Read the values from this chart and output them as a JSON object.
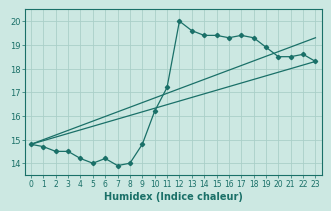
{
  "title": "",
  "xlabel": "Humidex (Indice chaleur)",
  "ylabel": "",
  "bg_color": "#cce8e2",
  "grid_color": "#aacfc8",
  "line_color": "#1a7068",
  "ylim": [
    13.5,
    20.5
  ],
  "xlim": [
    -0.5,
    23.5
  ],
  "yticks": [
    14,
    15,
    16,
    17,
    18,
    19,
    20
  ],
  "xticks": [
    0,
    1,
    2,
    3,
    4,
    5,
    6,
    7,
    8,
    9,
    10,
    11,
    12,
    13,
    14,
    15,
    16,
    17,
    18,
    19,
    20,
    21,
    22,
    23
  ],
  "line1_x": [
    0,
    1,
    2,
    3,
    4,
    5,
    6,
    7,
    8,
    9,
    10,
    11,
    12,
    13,
    14,
    15,
    16,
    17,
    18,
    19,
    20,
    21,
    22,
    23
  ],
  "line1_y": [
    14.8,
    14.7,
    14.5,
    14.5,
    14.2,
    14.0,
    14.2,
    13.9,
    14.0,
    14.8,
    16.2,
    17.2,
    20.0,
    19.6,
    19.4,
    19.4,
    19.3,
    19.4,
    19.3,
    18.9,
    18.5,
    18.5,
    18.6,
    18.3
  ],
  "line2_x": [
    0,
    23
  ],
  "line2_y": [
    14.8,
    18.3
  ],
  "line3_x": [
    0,
    23
  ],
  "line3_y": [
    14.8,
    19.3
  ]
}
